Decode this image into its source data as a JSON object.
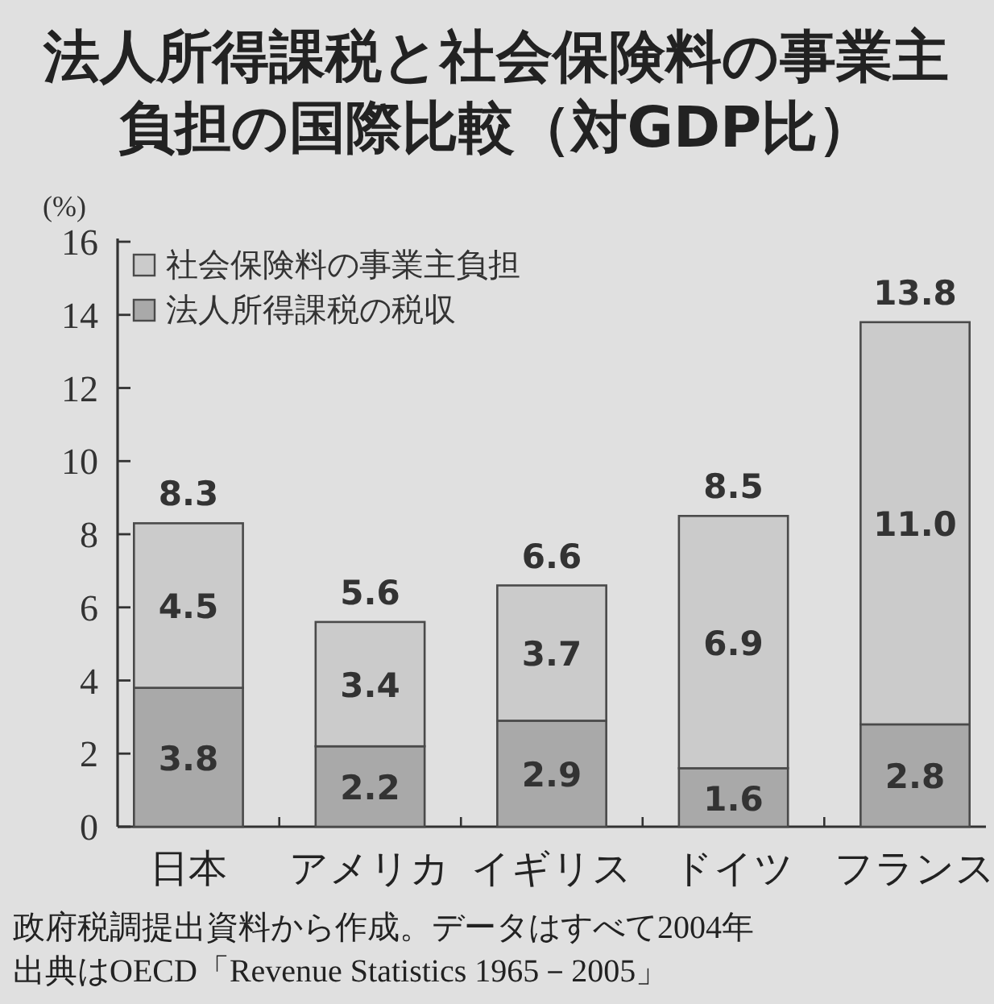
{
  "chart_data": {
    "type": "bar",
    "stacked": true,
    "title": "法人所得課税と社会保険料の事業主負担の国際比較（対GDP比）",
    "ylabel": "(%)",
    "categories": [
      "日本",
      "アメリカ",
      "イギリス",
      "ドイツ",
      "フランス"
    ],
    "series": [
      {
        "name": "法人所得課税の税収",
        "color": "#a9a9a9",
        "values": [
          3.8,
          2.2,
          2.9,
          1.6,
          2.8
        ],
        "value_labels": [
          "3.8",
          "2.2",
          "2.9",
          "1.6",
          "2.8"
        ]
      },
      {
        "name": "社会保険料の事業主負担",
        "color": "#cbcbcb",
        "values": [
          4.5,
          3.4,
          3.7,
          6.9,
          11.0
        ],
        "value_labels": [
          "4.5",
          "3.4",
          "3.7",
          "6.9",
          "11.0"
        ]
      }
    ],
    "totals": [
      "8.3",
      "5.6",
      "6.6",
      "8.5",
      "13.8"
    ],
    "ylim": [
      0,
      16
    ],
    "yticks": [
      0,
      2,
      4,
      6,
      8,
      10,
      12,
      14,
      16
    ],
    "legend": "top left",
    "annotations": [
      "政府税調提出資料から作成。データはすべて2004年",
      "出典はOECD「Revenue Statistics 1965－2005」"
    ]
  }
}
